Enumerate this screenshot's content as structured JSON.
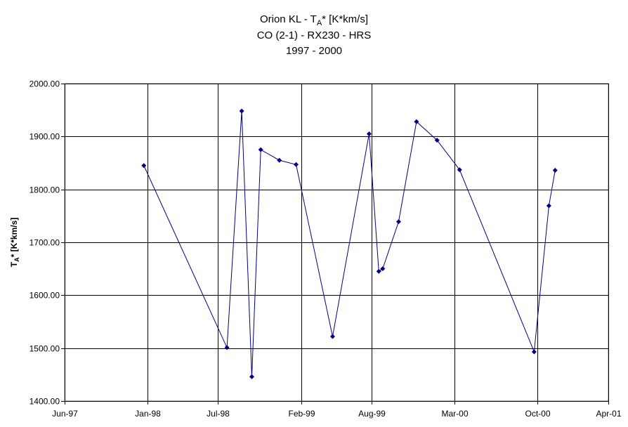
{
  "chart_data": {
    "type": "line",
    "title": {
      "line1_main": "Orion KL - T",
      "line1_sub": "A",
      "line1_rest": "* [K*km/s]",
      "line2": "CO (2-1) - RX230 - HRS",
      "line3": "1997 - 2000"
    },
    "ylabel": {
      "main": "T",
      "sub": "A",
      "rest": "* [K*km/s]"
    },
    "xlabel": "",
    "ylim": [
      1400,
      2000
    ],
    "yticks": [
      1400,
      1500,
      1600,
      1700,
      1800,
      1900,
      2000
    ],
    "ytick_labels": [
      "1400.00",
      "1500.00",
      "1600.00",
      "1700.00",
      "1800.00",
      "1900.00",
      "2000.00"
    ],
    "xlim": [
      "1997-06-01",
      "2001-04-01"
    ],
    "xticks": [
      "1997-06-01",
      "1998-01-01",
      "1998-07-01",
      "1999-02-01",
      "1999-08-01",
      "2000-03-01",
      "2000-10-01",
      "2001-04-01"
    ],
    "xtick_labels": [
      "Jun-97",
      "Jan-98",
      "Jul-98",
      "Feb-99",
      "Aug-99",
      "Mar-00",
      "Oct-00",
      "Apr-01"
    ],
    "grid": true,
    "line_color": "#000080",
    "series": [
      {
        "x": [
          "1997-12-22",
          "1998-07-24",
          "1998-08-31",
          "1998-09-26",
          "1998-10-19",
          "1998-12-06",
          "1999-01-18",
          "1999-04-22",
          "1999-07-25",
          "1999-08-19",
          "1999-08-29",
          "1999-10-09",
          "1999-11-24",
          "2000-01-16",
          "2000-03-14",
          "2000-09-22",
          "2000-10-30",
          "2000-11-15"
        ],
        "values": [
          1845,
          1501,
          1948,
          1446,
          1875,
          1855,
          1847,
          1522,
          1905,
          1645,
          1650,
          1739,
          1928,
          1893,
          1837,
          1493,
          1769,
          1836
        ]
      }
    ]
  }
}
